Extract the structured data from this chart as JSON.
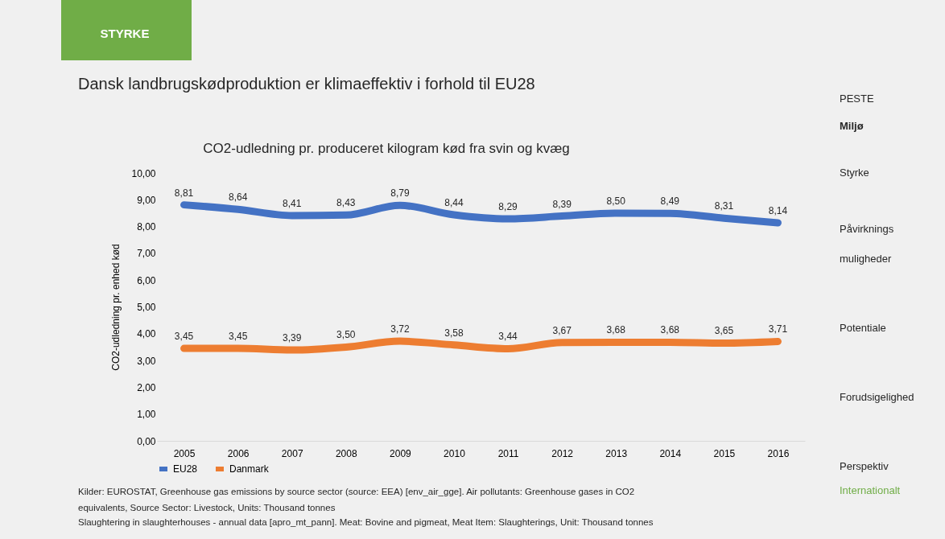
{
  "chart_data": {
    "type": "line",
    "title": "CO2-udledning pr. produceret kilogram kød fra svin og kvæg",
    "ylabel": "CO2-udledning pr. enhed kød",
    "categories": [
      "2005",
      "2006",
      "2007",
      "2008",
      "2009",
      "2010",
      "2011",
      "2012",
      "2013",
      "2014",
      "2015",
      "2016"
    ],
    "series": [
      {
        "name": "EU28",
        "color": "#4472c4",
        "values": [
          8.81,
          8.64,
          8.41,
          8.43,
          8.79,
          8.44,
          8.29,
          8.39,
          8.5,
          8.49,
          8.31,
          8.14
        ],
        "value_labels": [
          "8,81",
          "8,64",
          "8,41",
          "8,43",
          "8,79",
          "8,44",
          "8,29",
          "8,39",
          "8,50",
          "8,49",
          "8,31",
          "8,14"
        ]
      },
      {
        "name": "Danmark",
        "color": "#ed7d31",
        "values": [
          3.45,
          3.45,
          3.39,
          3.5,
          3.72,
          3.58,
          3.44,
          3.67,
          3.68,
          3.68,
          3.65,
          3.71
        ],
        "value_labels": [
          "3,45",
          "3,45",
          "3,39",
          "3,50",
          "3,72",
          "3,58",
          "3,44",
          "3,67",
          "3,68",
          "3,68",
          "3,65",
          "3,71"
        ]
      }
    ],
    "ylim": [
      0,
      10
    ],
    "yticks": [
      {
        "value": 0,
        "label": "0,00"
      },
      {
        "value": 1,
        "label": "1,00"
      },
      {
        "value": 2,
        "label": "2,00"
      },
      {
        "value": 3,
        "label": "3,00"
      },
      {
        "value": 4,
        "label": "4,00"
      },
      {
        "value": 5,
        "label": "5,00"
      },
      {
        "value": 6,
        "label": "6,00"
      },
      {
        "value": 7,
        "label": "7,00"
      },
      {
        "value": 8,
        "label": "8,00"
      },
      {
        "value": 9,
        "label": "9,00"
      },
      {
        "value": 10,
        "label": "10,00"
      }
    ],
    "grid": false,
    "legend": "bottom",
    "marker": "none",
    "line_style": "solid",
    "annotations": [
      "STYRKE",
      "Dansk landbrugskødproduktion er klimaeffektiv i forhold til EU28",
      "Kilder: EUROSTAT, Greenhouse gas emissions by source sector (source: EEA) [env_air_gge]. Air pollutants: Greenhouse gases in CO2",
      "equivalents, Source Sector: Livestock, Units: Thousand tonnes",
      "Slaughtering in slaughterhouses - annual data  [apro_mt_pann]. Meat: Bovine and pigmeat, Meat Item: Slaughterings, Unit: Thousand tonnes",
      "PESTE",
      "Miljø",
      "Styrke",
      "Påvirknings muligheder",
      "Potentiale",
      "Forudsigelighed",
      "Perspektiv",
      "Internationalt"
    ]
  }
}
